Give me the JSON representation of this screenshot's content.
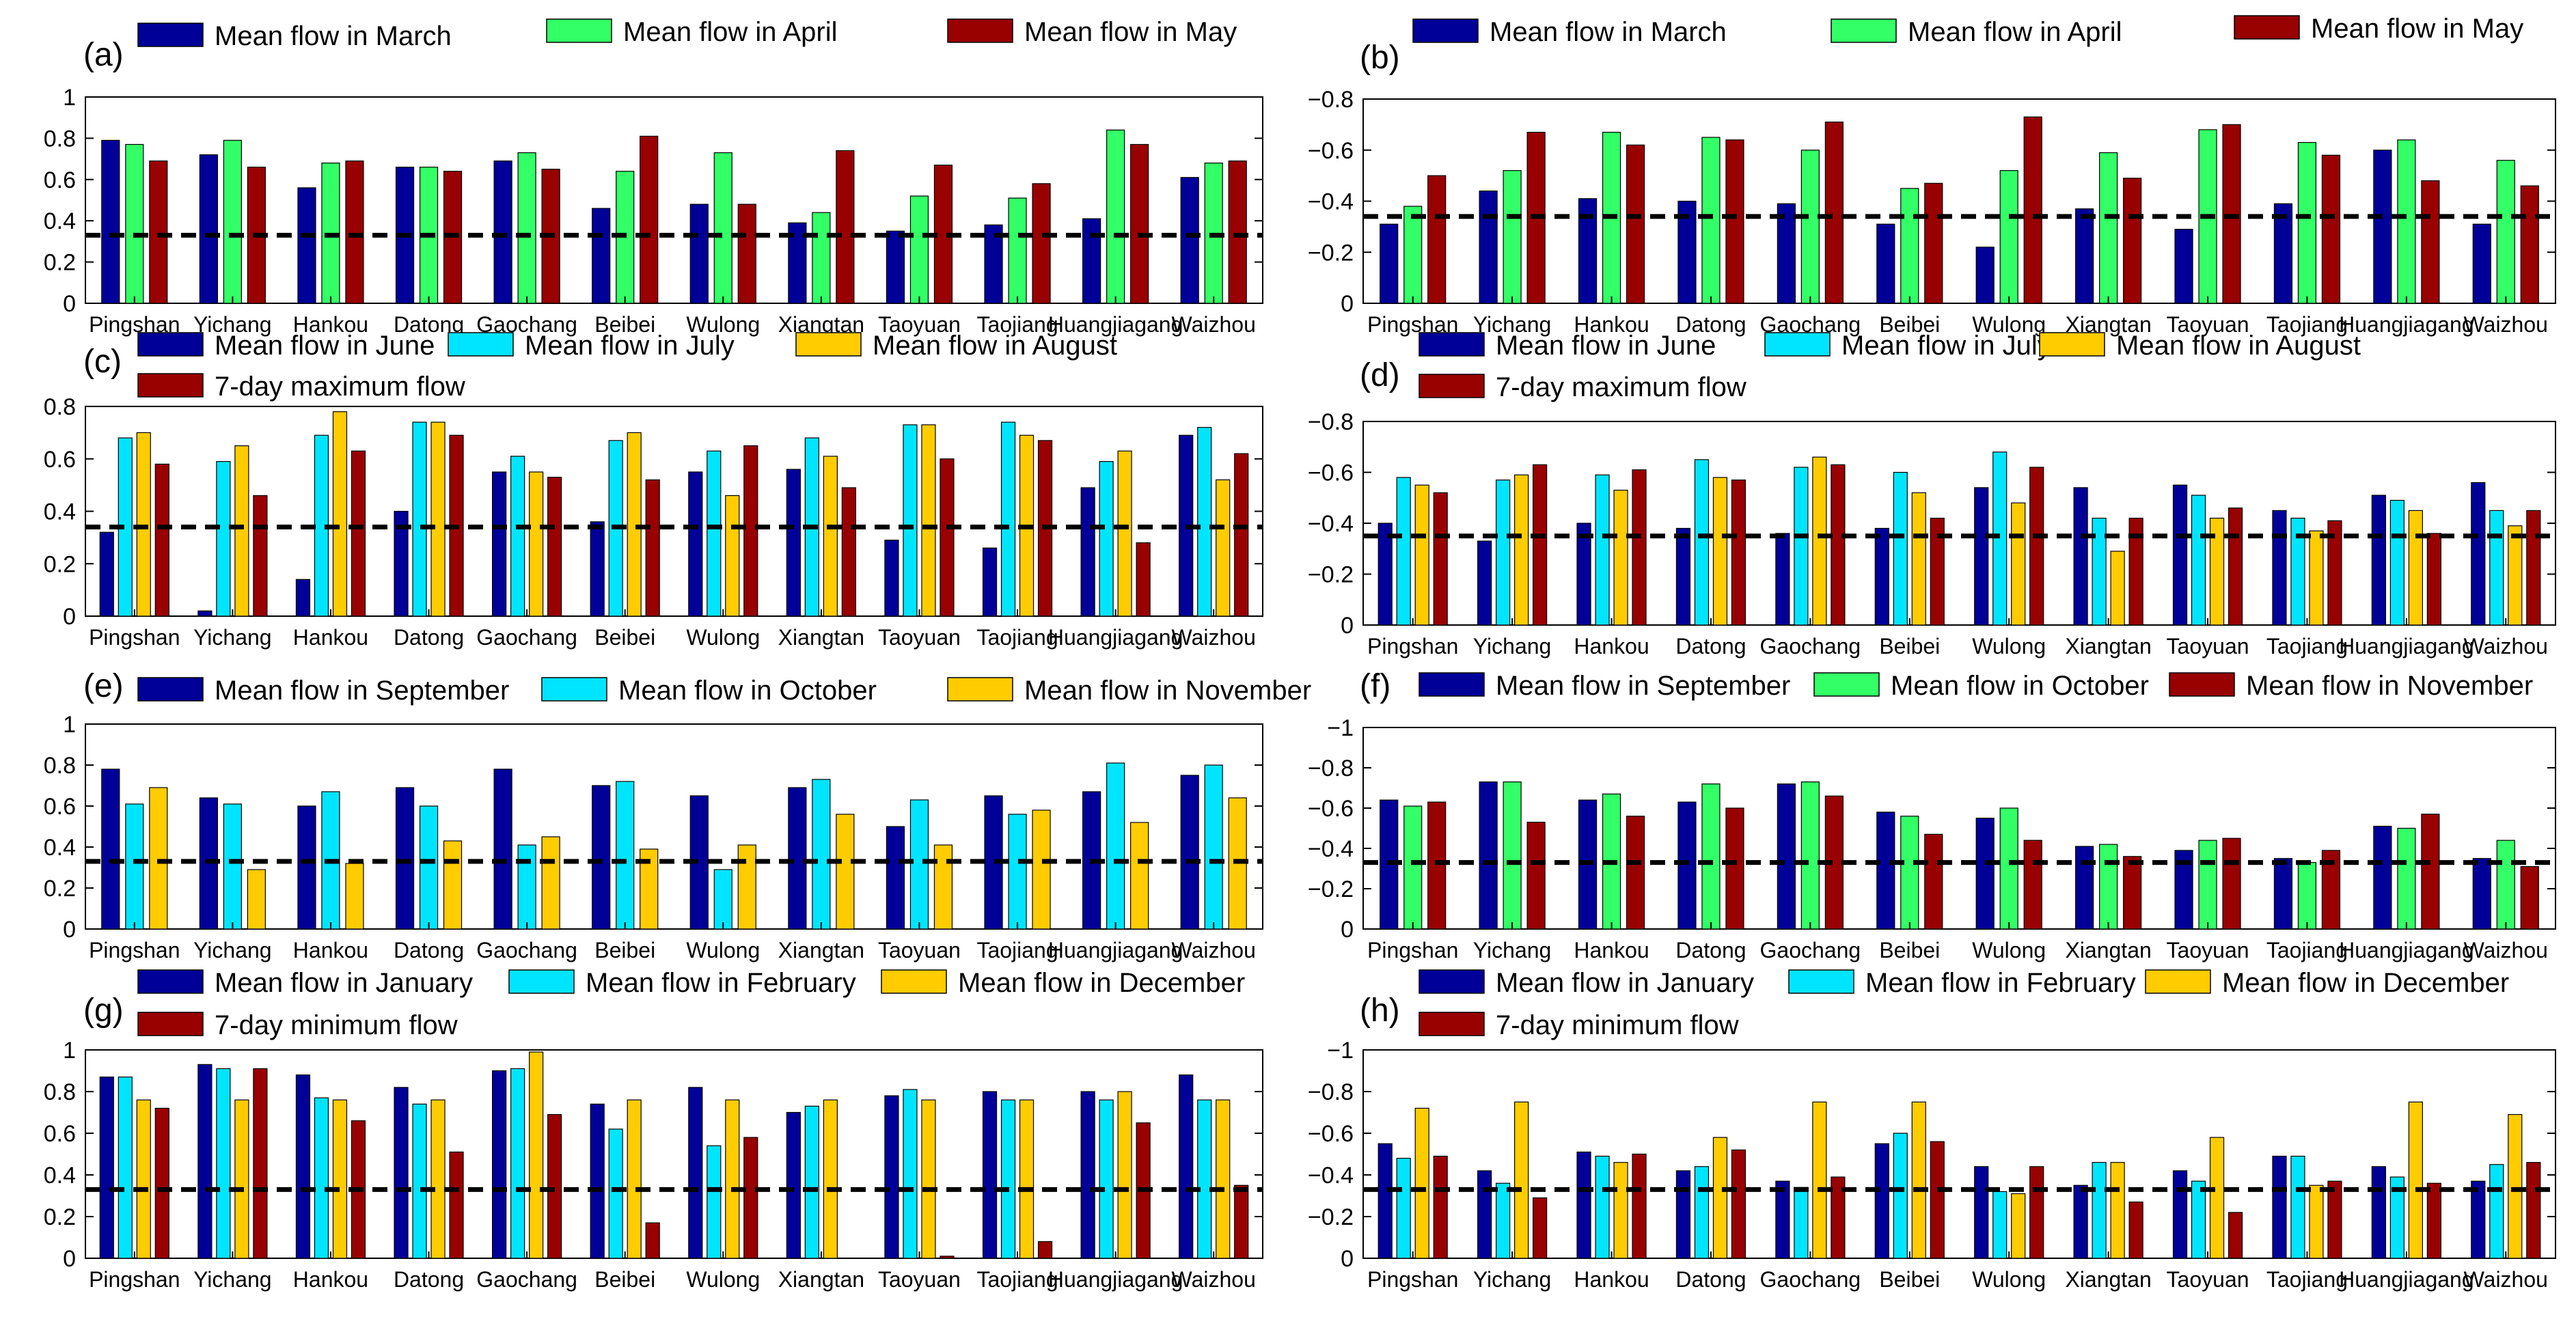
{
  "figure": {
    "stations": [
      "Pingshan",
      "Yichang",
      "Hankou",
      "Datong",
      "Gaochang",
      "Beibei",
      "Wulong",
      "Xiangtan",
      "Taoyuan",
      "Taojiang",
      "Huangjiagang",
      "Waizhou"
    ]
  },
  "chart_data": [
    {
      "id": "a",
      "label": "(a)",
      "type": "bar",
      "categories": [
        "Pingshan",
        "Yichang",
        "Hankou",
        "Datong",
        "Gaochang",
        "Beibei",
        "Wulong",
        "Xiangtan",
        "Taoyuan",
        "Taojiang",
        "Huangjiagang",
        "Waizhou"
      ],
      "ylim": [
        0,
        1
      ],
      "yticks": [
        0,
        0.2,
        0.4,
        0.6,
        0.8,
        1
      ],
      "ytick_labels": [
        "0",
        "0.2",
        "0.4",
        "0.6",
        "0.8",
        "1"
      ],
      "threshold": 0.33,
      "series": [
        {
          "name": "Mean flow in March",
          "color": "#000099",
          "values": [
            0.79,
            0.72,
            0.56,
            0.66,
            0.69,
            0.46,
            0.48,
            0.39,
            0.35,
            0.38,
            0.41,
            0.61
          ]
        },
        {
          "name": "Mean flow in April",
          "color": "#33ff66",
          "values": [
            0.77,
            0.79,
            0.68,
            0.66,
            0.73,
            0.64,
            0.73,
            0.44,
            0.52,
            0.51,
            0.84,
            0.68
          ]
        },
        {
          "name": "Mean flow in May",
          "color": "#990000",
          "values": [
            0.69,
            0.66,
            0.69,
            0.64,
            0.65,
            0.81,
            0.48,
            0.74,
            0.67,
            0.58,
            0.77,
            0.69
          ]
        }
      ]
    },
    {
      "id": "b",
      "label": "(b)",
      "type": "bar",
      "categories": [
        "Pingshan",
        "Yichang",
        "Hankou",
        "Datong",
        "Gaochang",
        "Beibei",
        "Wulong",
        "Xiangtan",
        "Taoyuan",
        "Taojiang",
        "Huangjiagang",
        "Waizhou"
      ],
      "ylim": [
        0,
        0.8
      ],
      "yticks": [
        0,
        0.2,
        0.4,
        0.6,
        0.8
      ],
      "ytick_labels": [
        "0",
        "−0.2",
        "−0.4",
        "−0.6",
        "−0.8"
      ],
      "threshold": 0.34,
      "series": [
        {
          "name": "Mean flow in March",
          "color": "#000099",
          "values": [
            0.31,
            0.44,
            0.41,
            0.4,
            0.39,
            0.31,
            0.22,
            0.37,
            0.29,
            0.39,
            0.6,
            0.31
          ]
        },
        {
          "name": "Mean flow in April",
          "color": "#33ff66",
          "values": [
            0.38,
            0.52,
            0.67,
            0.65,
            0.6,
            0.45,
            0.52,
            0.59,
            0.68,
            0.63,
            0.64,
            0.56
          ]
        },
        {
          "name": "Mean flow in May",
          "color": "#990000",
          "values": [
            0.5,
            0.67,
            0.62,
            0.64,
            0.71,
            0.47,
            0.73,
            0.49,
            0.7,
            0.58,
            0.48,
            0.46
          ]
        }
      ]
    },
    {
      "id": "c",
      "label": "(c)",
      "type": "bar",
      "categories": [
        "Pingshan",
        "Yichang",
        "Hankou",
        "Datong",
        "Gaochang",
        "Beibei",
        "Wulong",
        "Xiangtan",
        "Taoyuan",
        "Taojiang",
        "Huangjiagang",
        "Waizhou"
      ],
      "ylim": [
        0,
        0.8
      ],
      "yticks": [
        0,
        0.2,
        0.4,
        0.6,
        0.8
      ],
      "ytick_labels": [
        "0",
        "0.2",
        "0.4",
        "0.6",
        "0.8"
      ],
      "threshold": 0.34,
      "series": [
        {
          "name": "Mean flow in June",
          "color": "#000099",
          "values": [
            0.32,
            0.02,
            0.14,
            0.4,
            0.55,
            0.36,
            0.55,
            0.56,
            0.29,
            0.26,
            0.49,
            0.69
          ]
        },
        {
          "name": "Mean flow in July",
          "color": "#00e5ff",
          "values": [
            0.68,
            0.59,
            0.69,
            0.74,
            0.61,
            0.67,
            0.63,
            0.68,
            0.73,
            0.74,
            0.59,
            0.72
          ]
        },
        {
          "name": "Mean flow in August",
          "color": "#ffcc00",
          "values": [
            0.7,
            0.65,
            0.78,
            0.74,
            0.55,
            0.7,
            0.46,
            0.61,
            0.73,
            0.69,
            0.63,
            0.52
          ]
        },
        {
          "name": "7-day maximum flow",
          "color": "#990000",
          "values": [
            0.58,
            0.46,
            0.63,
            0.69,
            0.53,
            0.52,
            0.65,
            0.49,
            0.6,
            0.67,
            0.28,
            0.62
          ]
        }
      ]
    },
    {
      "id": "d",
      "label": "(d)",
      "type": "bar",
      "categories": [
        "Pingshan",
        "Yichang",
        "Hankou",
        "Datong",
        "Gaochang",
        "Beibei",
        "Wulong",
        "Xiangtan",
        "Taoyuan",
        "Taojiang",
        "Huangjiagang",
        "Waizhou"
      ],
      "ylim": [
        0,
        0.8
      ],
      "yticks": [
        0,
        0.2,
        0.4,
        0.6,
        0.8
      ],
      "ytick_labels": [
        "0",
        "−0.2",
        "−0.4",
        "−0.6",
        "−0.8"
      ],
      "threshold": 0.35,
      "series": [
        {
          "name": "Mean flow in June",
          "color": "#000099",
          "values": [
            0.4,
            0.33,
            0.4,
            0.38,
            0.36,
            0.38,
            0.54,
            0.54,
            0.55,
            0.45,
            0.51,
            0.56
          ]
        },
        {
          "name": "Mean flow in July",
          "color": "#00e5ff",
          "values": [
            0.58,
            0.57,
            0.59,
            0.65,
            0.62,
            0.6,
            0.68,
            0.42,
            0.51,
            0.42,
            0.49,
            0.45
          ]
        },
        {
          "name": "Mean flow in August",
          "color": "#ffcc00",
          "values": [
            0.55,
            0.59,
            0.53,
            0.58,
            0.66,
            0.52,
            0.48,
            0.29,
            0.42,
            0.37,
            0.45,
            0.39
          ]
        },
        {
          "name": "7-day maximum flow",
          "color": "#990000",
          "values": [
            0.52,
            0.63,
            0.61,
            0.57,
            0.63,
            0.42,
            0.62,
            0.42,
            0.46,
            0.41,
            0.36,
            0.45
          ]
        }
      ]
    },
    {
      "id": "e",
      "label": "(e)",
      "type": "bar",
      "categories": [
        "Pingshan",
        "Yichang",
        "Hankou",
        "Datong",
        "Gaochang",
        "Beibei",
        "Wulong",
        "Xiangtan",
        "Taoyuan",
        "Taojiang",
        "Huangjiagang",
        "Waizhou"
      ],
      "ylim": [
        0,
        1
      ],
      "yticks": [
        0,
        0.2,
        0.4,
        0.6,
        0.8,
        1
      ],
      "ytick_labels": [
        "0",
        "0.2",
        "0.4",
        "0.6",
        "0.8",
        "1"
      ],
      "threshold": 0.33,
      "series": [
        {
          "name": "Mean flow in September",
          "color": "#000099",
          "values": [
            0.78,
            0.64,
            0.6,
            0.69,
            0.78,
            0.7,
            0.65,
            0.69,
            0.5,
            0.65,
            0.67,
            0.75
          ]
        },
        {
          "name": "Mean flow in October",
          "color": "#00e5ff",
          "values": [
            0.61,
            0.61,
            0.67,
            0.6,
            0.41,
            0.72,
            0.29,
            0.73,
            0.63,
            0.56,
            0.81,
            0.8
          ]
        },
        {
          "name": "Mean flow in November",
          "color": "#ffcc00",
          "values": [
            0.69,
            0.29,
            0.32,
            0.43,
            0.45,
            0.39,
            0.41,
            0.56,
            0.41,
            0.58,
            0.52,
            0.64
          ]
        }
      ]
    },
    {
      "id": "f",
      "label": "(f)",
      "type": "bar",
      "categories": [
        "Pingshan",
        "Yichang",
        "Hankou",
        "Datong",
        "Gaochang",
        "Beibei",
        "Wulong",
        "Xiangtan",
        "Taoyuan",
        "Taojiang",
        "Huangjiagang",
        "Waizhou"
      ],
      "ylim": [
        0,
        1
      ],
      "yticks": [
        0,
        0.2,
        0.4,
        0.6,
        0.8,
        1
      ],
      "ytick_labels": [
        "0",
        "−0.2",
        "−0.4",
        "−0.6",
        "−0.8",
        "−1"
      ],
      "threshold": 0.33,
      "series": [
        {
          "name": "Mean flow in September",
          "color": "#000099",
          "values": [
            0.64,
            0.73,
            0.64,
            0.63,
            0.72,
            0.58,
            0.55,
            0.41,
            0.39,
            0.35,
            0.51,
            0.35
          ]
        },
        {
          "name": "Mean flow in October",
          "color": "#33ff66",
          "values": [
            0.61,
            0.73,
            0.67,
            0.72,
            0.73,
            0.56,
            0.6,
            0.42,
            0.44,
            0.33,
            0.5,
            0.44
          ]
        },
        {
          "name": "Mean flow in November",
          "color": "#990000",
          "values": [
            0.63,
            0.53,
            0.56,
            0.6,
            0.66,
            0.47,
            0.44,
            0.36,
            0.45,
            0.39,
            0.57,
            0.31
          ]
        }
      ]
    },
    {
      "id": "g",
      "label": "(g)",
      "type": "bar",
      "categories": [
        "Pingshan",
        "Yichang",
        "Hankou",
        "Datong",
        "Gaochang",
        "Beibei",
        "Wulong",
        "Xiangtan",
        "Taoyuan",
        "Taojiang",
        "Huangjiagang",
        "Waizhou"
      ],
      "ylim": [
        0,
        1
      ],
      "yticks": [
        0,
        0.2,
        0.4,
        0.6,
        0.8,
        1
      ],
      "ytick_labels": [
        "0",
        "0.2",
        "0.4",
        "0.6",
        "0.8",
        "1"
      ],
      "threshold": 0.33,
      "series": [
        {
          "name": "Mean flow in January",
          "color": "#000099",
          "values": [
            0.87,
            0.93,
            0.88,
            0.82,
            0.9,
            0.74,
            0.82,
            0.7,
            0.78,
            0.8,
            0.8,
            0.88
          ]
        },
        {
          "name": "Mean flow in February",
          "color": "#00e5ff",
          "values": [
            0.87,
            0.91,
            0.77,
            0.74,
            0.91,
            0.62,
            0.54,
            0.73,
            0.81,
            0.76,
            0.76,
            0.76
          ]
        },
        {
          "name": "Mean flow in December",
          "color": "#ffcc00",
          "values": [
            0.76,
            0.76,
            0.76,
            0.76,
            0.99,
            0.76,
            0.76,
            0.76,
            0.76,
            0.76,
            0.8,
            0.76
          ]
        },
        {
          "name": "7-day minimum  flow",
          "color": "#990000",
          "values": [
            0.72,
            0.91,
            0.66,
            0.51,
            0.69,
            0.17,
            0.58,
            0.0,
            0.01,
            0.08,
            0.65,
            0.35
          ]
        }
      ]
    },
    {
      "id": "h",
      "label": "(h)",
      "type": "bar",
      "categories": [
        "Pingshan",
        "Yichang",
        "Hankou",
        "Datong",
        "Gaochang",
        "Beibei",
        "Wulong",
        "Xiangtan",
        "Taoyuan",
        "Taojiang",
        "Huangjiagang",
        "Waizhou"
      ],
      "ylim": [
        0,
        1
      ],
      "yticks": [
        0,
        0.2,
        0.4,
        0.6,
        0.8,
        1
      ],
      "ytick_labels": [
        "0",
        "−0.2",
        "−0.4",
        "−0.6",
        "−0.8",
        "−1"
      ],
      "threshold": 0.33,
      "series": [
        {
          "name": "Mean flow in January",
          "color": "#000099",
          "values": [
            0.55,
            0.42,
            0.51,
            0.42,
            0.37,
            0.55,
            0.44,
            0.35,
            0.42,
            0.49,
            0.44,
            0.37
          ]
        },
        {
          "name": "Mean flow in February",
          "color": "#00e5ff",
          "values": [
            0.48,
            0.36,
            0.49,
            0.44,
            0.34,
            0.6,
            0.32,
            0.46,
            0.37,
            0.49,
            0.39,
            0.45
          ]
        },
        {
          "name": "Mean flow in December",
          "color": "#ffcc00",
          "values": [
            0.72,
            0.75,
            0.46,
            0.58,
            0.75,
            0.75,
            0.31,
            0.46,
            0.58,
            0.35,
            0.75,
            0.69
          ]
        },
        {
          "name": "7-day minimum  flow",
          "color": "#990000",
          "values": [
            0.49,
            0.29,
            0.5,
            0.52,
            0.39,
            0.56,
            0.44,
            0.27,
            0.22,
            0.37,
            0.36,
            0.46
          ]
        }
      ]
    }
  ]
}
